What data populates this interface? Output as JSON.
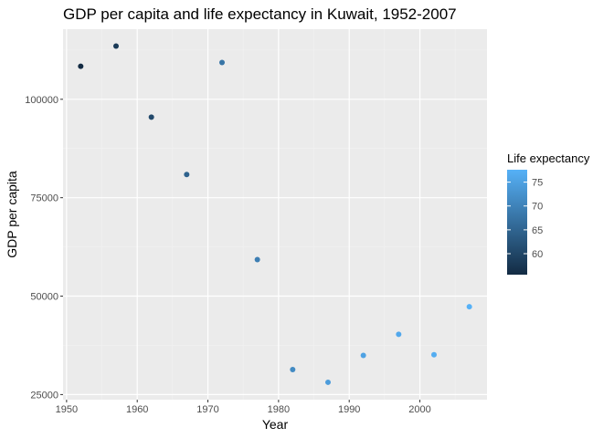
{
  "chart_data": {
    "type": "scatter",
    "title": "GDP per capita and life expectancy in Kuwait, 1952-2007",
    "xlabel": "Year",
    "ylabel": "GDP per capita",
    "xlim": [
      1949.5,
      2009.5
    ],
    "ylim": [
      23700,
      117800
    ],
    "x_ticks": [
      1950,
      1960,
      1970,
      1980,
      1990,
      2000
    ],
    "y_ticks": [
      25000,
      50000,
      75000,
      100000
    ],
    "y_tick_labels": [
      "25000",
      "50000",
      "75000",
      "100000"
    ],
    "grid": true,
    "color_legend": {
      "title": "Life expectancy",
      "placement": "right",
      "range": [
        55.6,
        77.6
      ],
      "breaks": [
        60,
        65,
        70,
        75
      ],
      "low_color": "#132b43",
      "high_color": "#56b1f7"
    },
    "points": [
      {
        "year": 1952,
        "gdp": 108382,
        "life_exp": 55.6
      },
      {
        "year": 1957,
        "gdp": 113523,
        "life_exp": 58.0
      },
      {
        "year": 1962,
        "gdp": 95458,
        "life_exp": 60.5
      },
      {
        "year": 1967,
        "gdp": 80895,
        "life_exp": 64.6
      },
      {
        "year": 1972,
        "gdp": 109348,
        "life_exp": 67.7
      },
      {
        "year": 1977,
        "gdp": 59265,
        "life_exp": 69.3
      },
      {
        "year": 1982,
        "gdp": 31354,
        "life_exp": 71.3
      },
      {
        "year": 1987,
        "gdp": 28118,
        "life_exp": 74.2
      },
      {
        "year": 1992,
        "gdp": 34933,
        "life_exp": 75.2
      },
      {
        "year": 1997,
        "gdp": 40301,
        "life_exp": 76.2
      },
      {
        "year": 2002,
        "gdp": 35110,
        "life_exp": 76.9
      },
      {
        "year": 2007,
        "gdp": 47307,
        "life_exp": 77.6
      }
    ]
  }
}
